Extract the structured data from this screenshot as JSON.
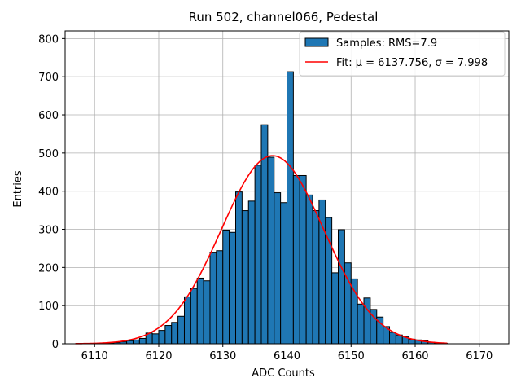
{
  "chart_data": {
    "type": "bar",
    "title": "Run 502, channel066, Pedestal",
    "xlabel": "ADC Counts",
    "ylabel": "Entries",
    "xlim": [
      6105.4,
      6174.6
    ],
    "ylim": [
      0,
      820
    ],
    "xticks": [
      6110,
      6120,
      6130,
      6140,
      6150,
      6160,
      6170
    ],
    "yticks": [
      0,
      100,
      200,
      300,
      400,
      500,
      600,
      700,
      800
    ],
    "grid": true,
    "legend_position": "top-right",
    "legend": [
      {
        "label": "Samples: RMS=7.9",
        "kind": "patch"
      },
      {
        "label": "Fit: μ = 6137.756, σ = 7.998",
        "kind": "line"
      }
    ],
    "colors": {
      "bars": "#1f77b4",
      "fit": "#ff0000",
      "edge": "#000000",
      "grid": "#b0b0b0"
    },
    "histogram": {
      "bin_edges": [
        6107,
        6108,
        6109,
        6110,
        6111,
        6112,
        6113,
        6114,
        6115,
        6116,
        6117,
        6118,
        6119,
        6120,
        6121,
        6122,
        6123,
        6124,
        6125,
        6126,
        6127,
        6128,
        6129,
        6130,
        6131,
        6132,
        6133,
        6134,
        6135,
        6136,
        6137,
        6138,
        6139,
        6140,
        6141,
        6142,
        6143,
        6144,
        6145,
        6146,
        6147,
        6148,
        6149,
        6150,
        6151,
        6152,
        6153,
        6154,
        6155,
        6156,
        6157,
        6158,
        6159,
        6160,
        6161,
        6162,
        6163,
        6164,
        6165
      ],
      "counts": [
        0,
        0,
        0,
        0,
        0,
        1,
        3,
        5,
        8,
        10,
        14,
        28,
        26,
        35,
        48,
        56,
        72,
        123,
        145,
        172,
        165,
        240,
        244,
        298,
        292,
        398,
        349,
        374,
        468,
        574,
        489,
        396,
        370,
        713,
        441,
        441,
        390,
        349,
        377,
        331,
        186,
        299,
        212,
        170,
        104,
        120,
        90,
        70,
        45,
        30,
        23,
        19,
        12,
        10,
        8,
        4,
        2,
        1
      ]
    },
    "fit": {
      "type": "gaussian",
      "mu": 6137.756,
      "sigma": 7.998,
      "amplitude": 493,
      "x_range": [
        6107,
        6165
      ]
    }
  }
}
